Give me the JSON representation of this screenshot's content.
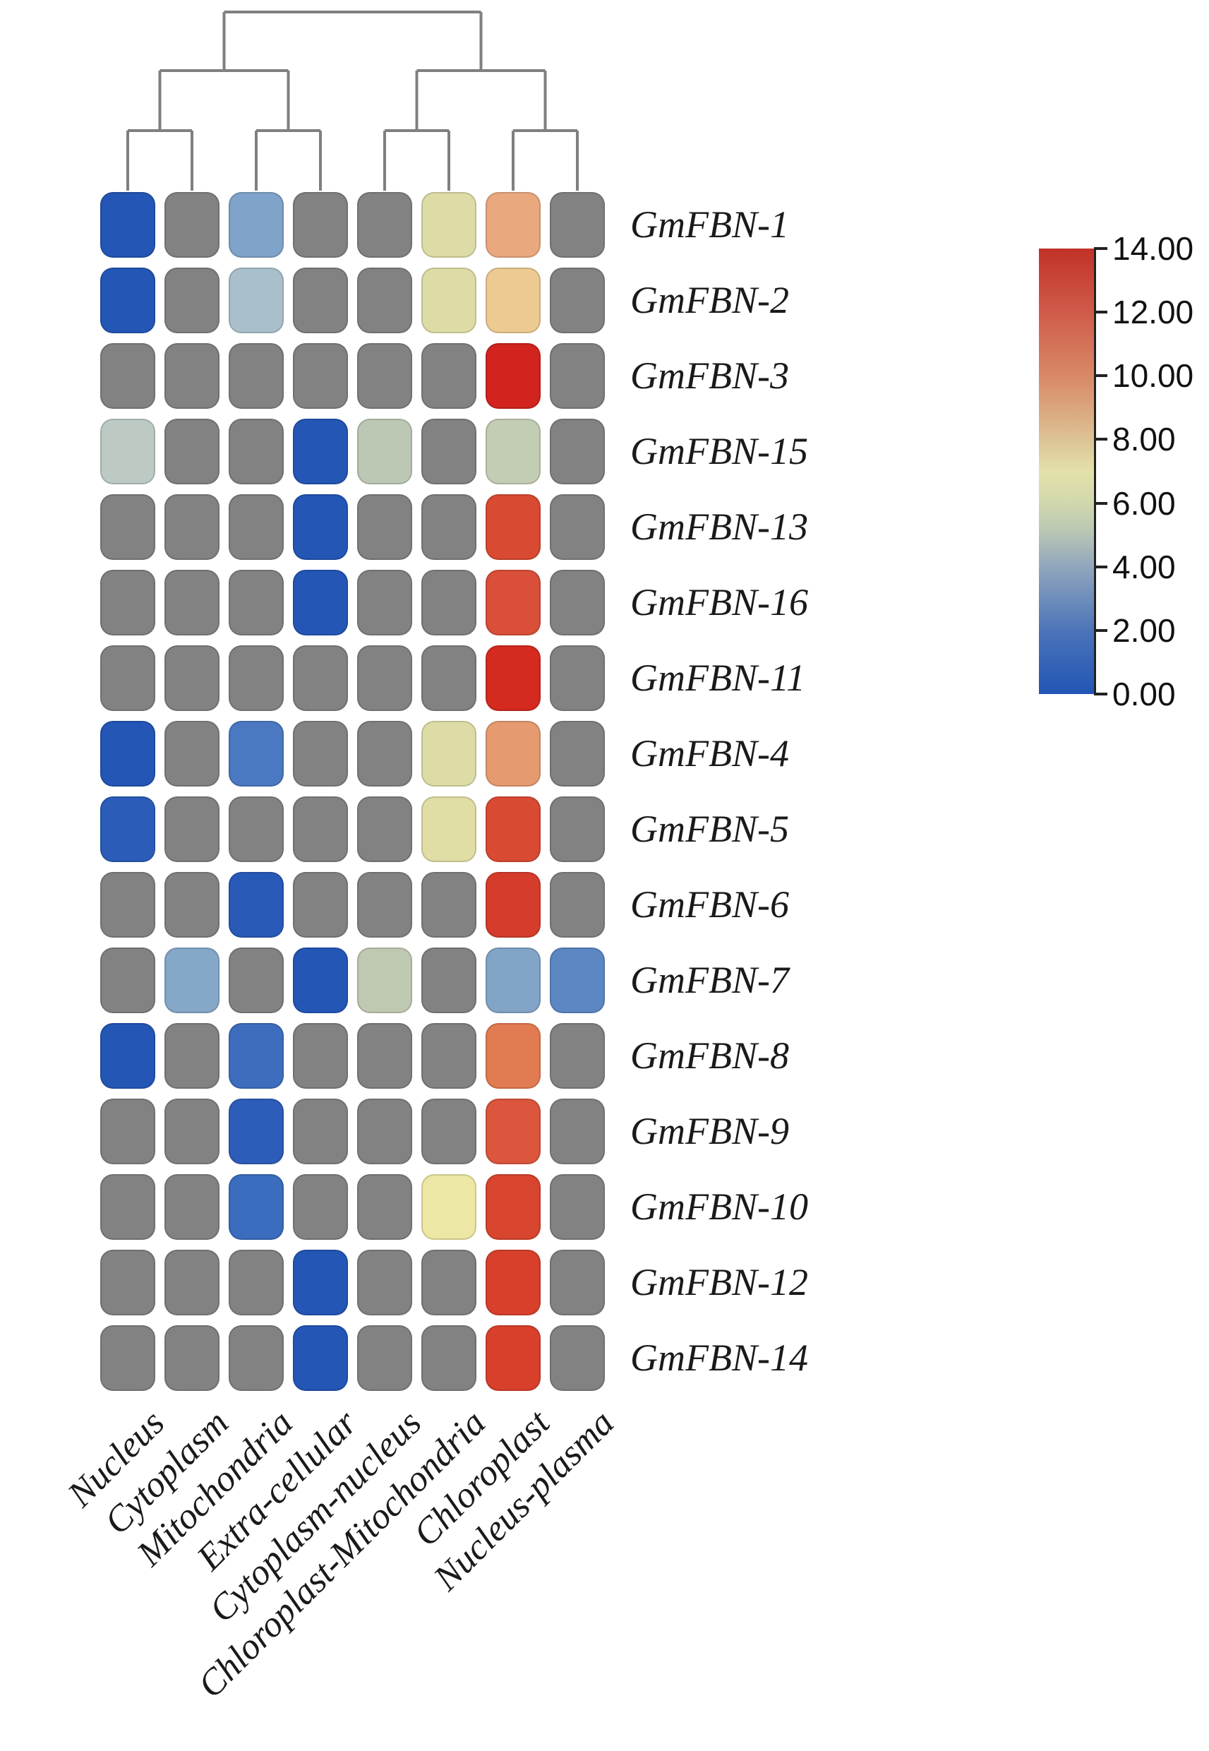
{
  "figure_title": "",
  "chart_data": {
    "type": "heatmap",
    "title": "",
    "xlabel": "",
    "ylabel": "",
    "rows": [
      "GmFBN-1",
      "GmFBN-2",
      "GmFBN-3",
      "GmFBN-15",
      "GmFBN-13",
      "GmFBN-16",
      "GmFBN-11",
      "GmFBN-4",
      "GmFBN-5",
      "GmFBN-6",
      "GmFBN-7",
      "GmFBN-8",
      "GmFBN-9",
      "GmFBN-10",
      "GmFBN-12",
      "GmFBN-14"
    ],
    "columns": [
      "Nucleus",
      "Cytoplasm",
      "Mitochondria",
      "Extra-cellular",
      "Cytoplasm-nucleus",
      "Chloroplast-Mitochondria",
      "Chloroplast",
      "Nucleus-plasma"
    ],
    "values": [
      [
        0.5,
        null,
        3.5,
        null,
        null,
        7,
        9.5,
        null
      ],
      [
        0.5,
        null,
        4.5,
        null,
        null,
        7,
        8.5,
        null
      ],
      [
        null,
        null,
        null,
        null,
        null,
        null,
        14,
        null
      ],
      [
        5,
        null,
        null,
        0.5,
        5.5,
        null,
        6,
        null
      ],
      [
        null,
        null,
        null,
        0.5,
        null,
        null,
        12.5,
        null
      ],
      [
        null,
        null,
        null,
        0.5,
        null,
        null,
        12,
        null
      ],
      [
        null,
        null,
        null,
        null,
        null,
        null,
        13.5,
        null
      ],
      [
        0.5,
        null,
        2,
        null,
        null,
        7,
        10,
        null
      ],
      [
        1,
        null,
        null,
        null,
        null,
        7,
        12.5,
        null
      ],
      [
        null,
        null,
        0.5,
        null,
        null,
        null,
        13,
        null
      ],
      [
        null,
        3.5,
        null,
        0.5,
        5.5,
        null,
        3.5,
        2.5
      ],
      [
        0.5,
        null,
        1.5,
        null,
        null,
        null,
        11,
        null
      ],
      [
        null,
        null,
        1,
        null,
        null,
        null,
        12,
        null
      ],
      [
        null,
        null,
        1.5,
        null,
        null,
        7.5,
        13,
        null
      ],
      [
        null,
        null,
        null,
        0.5,
        null,
        null,
        13,
        null
      ],
      [
        null,
        null,
        null,
        0.5,
        null,
        null,
        13,
        null
      ]
    ],
    "cell_colors": [
      [
        "#2456b6",
        null,
        "#7fa3c9",
        null,
        null,
        "#dedca6",
        "#eaa87e",
        null
      ],
      [
        "#2456b6",
        null,
        "#a9bfcb",
        null,
        null,
        "#dedca6",
        "#ecca92",
        null
      ],
      [
        null,
        null,
        null,
        null,
        null,
        null,
        "#d2231f",
        null
      ],
      [
        "#bdcac3",
        null,
        null,
        "#2456b6",
        "#bcc7b4",
        null,
        "#c3cdb3",
        null
      ],
      [
        null,
        null,
        null,
        "#2456b6",
        null,
        null,
        "#d94a33",
        null
      ],
      [
        null,
        null,
        null,
        "#2456b6",
        null,
        null,
        "#d94f3a",
        null
      ],
      [
        null,
        null,
        null,
        null,
        null,
        null,
        "#d42a20",
        null
      ],
      [
        "#2456b6",
        null,
        "#4a79c2",
        null,
        null,
        "#dedca6",
        "#e59a70",
        null
      ],
      [
        "#2b5cb8",
        null,
        null,
        null,
        null,
        "#e0dda5",
        "#d94a33",
        null
      ],
      [
        null,
        null,
        "#2859b7",
        null,
        null,
        null,
        "#d63c2b",
        null
      ],
      [
        null,
        "#85a7c8",
        null,
        "#2456b6",
        "#bfc9b1",
        null,
        "#82a4c6",
        "#5c87c3"
      ],
      [
        "#2456b6",
        null,
        "#3f6dbd",
        null,
        null,
        null,
        "#e07b52",
        null
      ],
      [
        null,
        null,
        "#2d5db9",
        null,
        null,
        null,
        "#dc553d",
        null
      ],
      [
        null,
        null,
        "#3b6cbd",
        null,
        null,
        "#ece7a4",
        "#d8452f",
        null
      ],
      [
        null,
        null,
        null,
        "#2456b6",
        null,
        null,
        "#d8402c",
        null
      ],
      [
        null,
        null,
        null,
        "#2456b6",
        null,
        null,
        "#d8402c",
        null
      ]
    ],
    "na_color": "#828282",
    "dendrogram_line_color": "#7f7f7f",
    "column_dendrogram": {
      "leaf_pairs": [
        [
          0,
          1
        ],
        [
          2,
          3
        ],
        [
          4,
          5
        ],
        [
          6,
          7
        ]
      ],
      "second_level_pairs": [
        [
          0,
          1
        ],
        [
          2,
          3
        ]
      ],
      "root_joins": [
        0,
        1
      ]
    },
    "colorbar": {
      "min": 0,
      "max": 14,
      "tick_labels": [
        "14.00",
        "12.00",
        "10.00",
        "8.00",
        "6.00",
        "4.00",
        "2.00",
        "0.00"
      ],
      "gradient_stops": [
        [
          "0%",
          "#c23127"
        ],
        [
          "14%",
          "#cf5a49"
        ],
        [
          "29%",
          "#d98a67"
        ],
        [
          "43%",
          "#dcc395"
        ],
        [
          "50%",
          "#e3e1a9"
        ],
        [
          "57%",
          "#d2d8ad"
        ],
        [
          "64%",
          "#b7c5b4"
        ],
        [
          "71%",
          "#93a8bd"
        ],
        [
          "86%",
          "#4a73b9"
        ],
        [
          "100%",
          "#2355b5"
        ]
      ],
      "legend_position": "right"
    },
    "grid": false
  }
}
